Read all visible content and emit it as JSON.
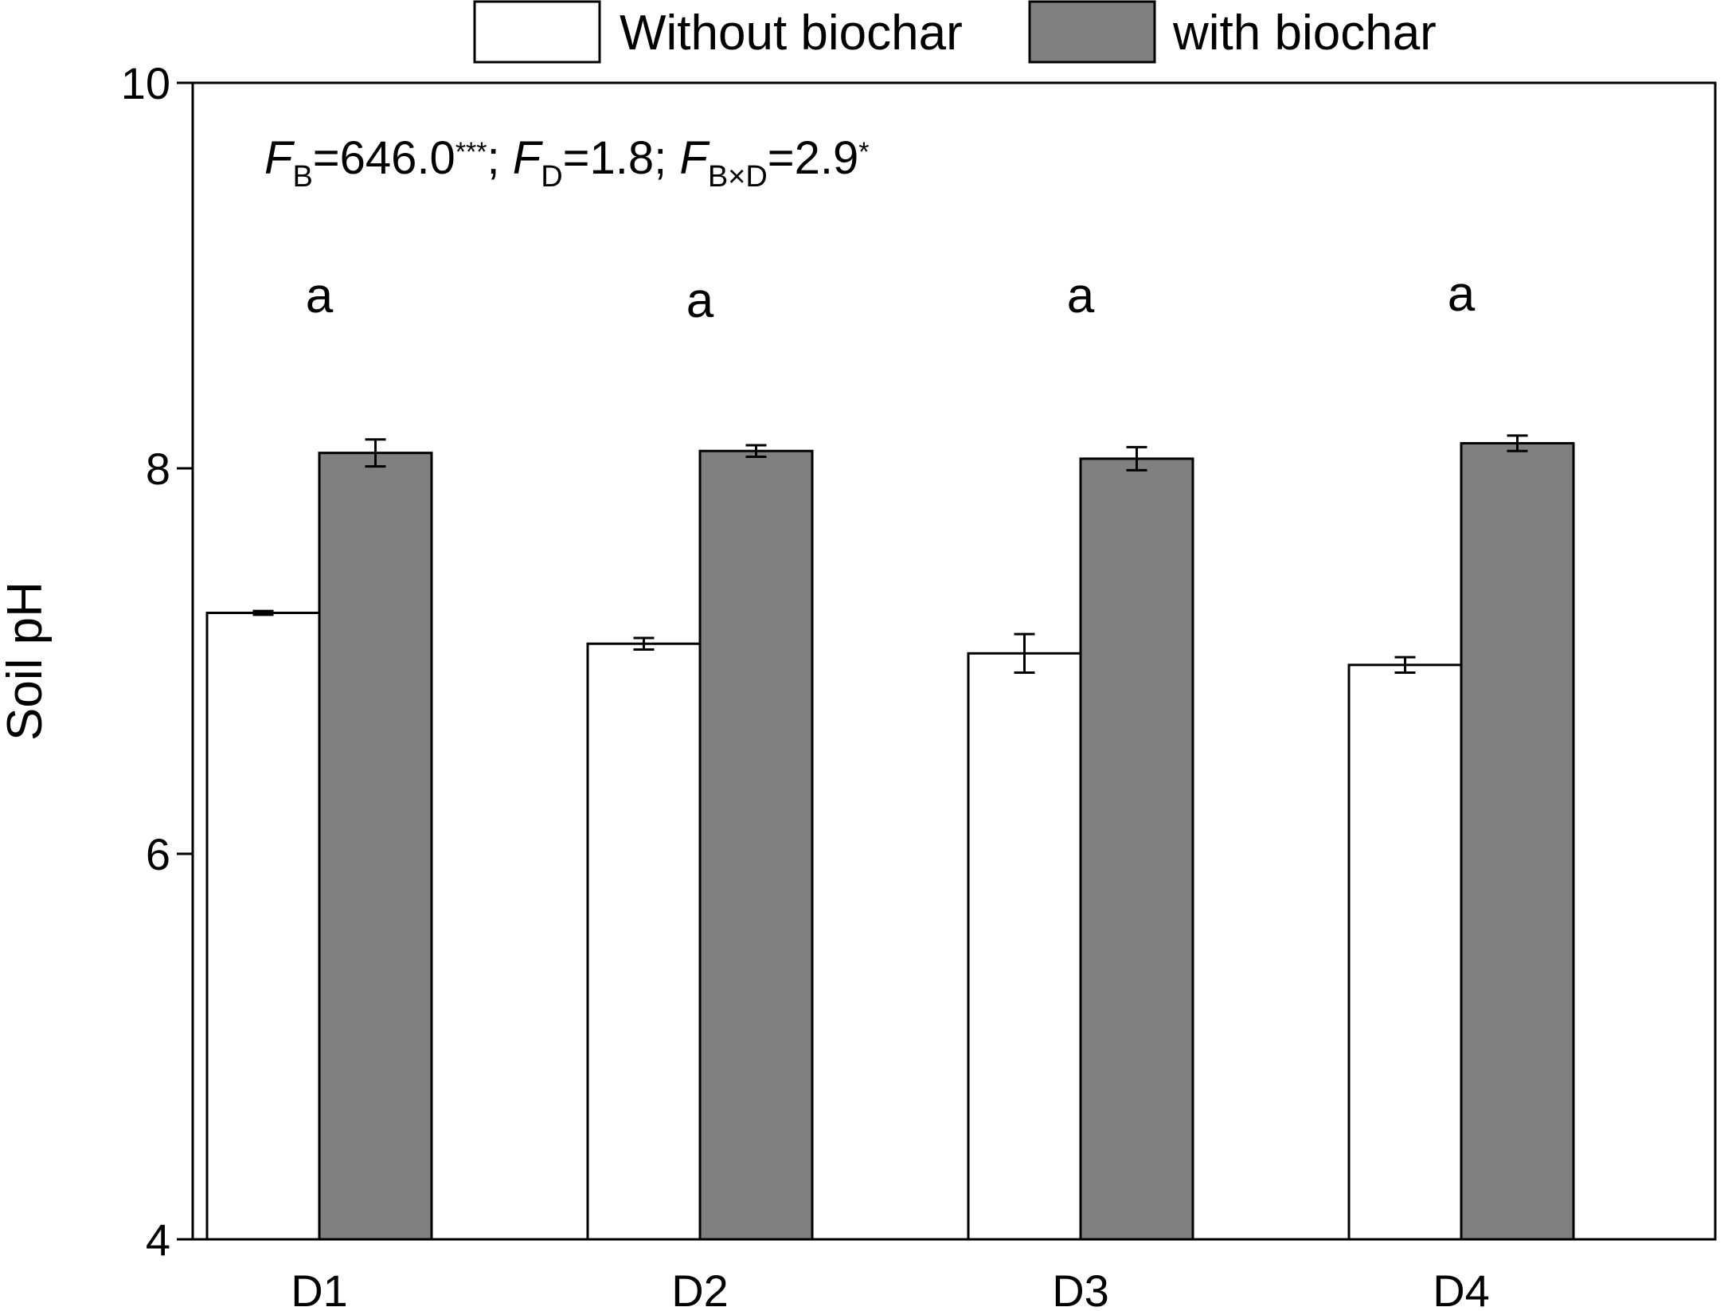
{
  "chart_data": {
    "type": "bar",
    "categories": [
      "D1",
      "D2",
      "D3",
      "D4"
    ],
    "series": [
      {
        "name": "Without biochar",
        "values": [
          7.25,
          7.09,
          7.04,
          6.98
        ],
        "errors": [
          0.01,
          0.03,
          0.1,
          0.04
        ],
        "color": "#ffffff"
      },
      {
        "name": "with biochar",
        "values": [
          8.08,
          8.09,
          8.05,
          8.13
        ],
        "errors": [
          0.07,
          0.03,
          0.06,
          0.04
        ],
        "color": "#808080"
      }
    ],
    "ylabel": "Soil pH",
    "xlabel": "",
    "ylim": [
      4,
      10
    ],
    "yticks": [
      "4",
      "6",
      "8",
      "10"
    ],
    "letters": [
      "a",
      "a",
      "a",
      "a"
    ],
    "annotation": {
      "parts": [
        {
          "text": "F",
          "style": "italic"
        },
        {
          "text": "B",
          "style": "sub"
        },
        {
          "text": "=646.0",
          "style": "normal"
        },
        {
          "text": "***",
          "style": "sup"
        },
        {
          "text": "; ",
          "style": "normal"
        },
        {
          "text": "F",
          "style": "italic"
        },
        {
          "text": "D",
          "style": "sub"
        },
        {
          "text": "=1.8; ",
          "style": "normal"
        },
        {
          "text": "F",
          "style": "italic"
        },
        {
          "text": "B×D",
          "style": "sub"
        },
        {
          "text": "=2.9",
          "style": "normal"
        },
        {
          "text": "*",
          "style": "sup"
        }
      ]
    },
    "grid": false,
    "legend_position": "top"
  }
}
